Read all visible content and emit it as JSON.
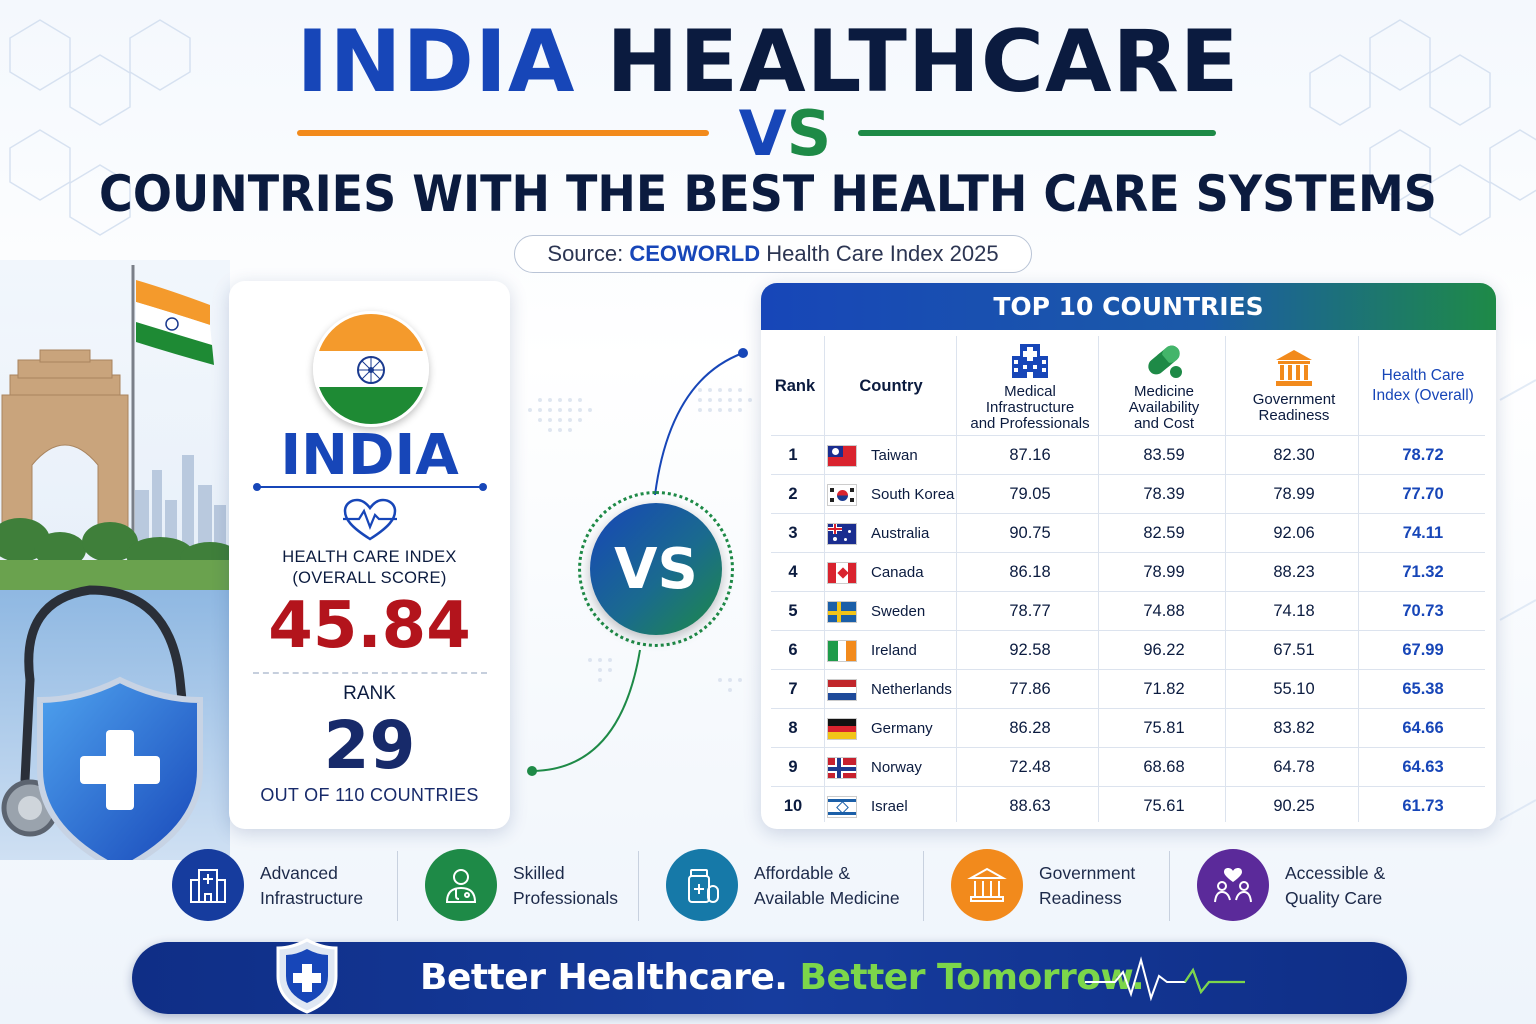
{
  "header": {
    "title_india": "INDIA",
    "title_healthcare": "HEALTHCARE",
    "vs_v": "V",
    "vs_s": "S",
    "subtitle": "COUNTRIES WITH THE BEST HEALTH CARE SYSTEMS",
    "source_prefix": "Source: ",
    "source_brand": "CEOWORLD",
    "source_suffix": " Health Care Index 2025"
  },
  "india_card": {
    "country": "INDIA",
    "index_label_1": "HEALTH CARE INDEX",
    "index_label_2": "(OVERALL SCORE)",
    "score": "45.84",
    "rank_label": "RANK",
    "rank": "29",
    "rank_total": "OUT OF 110 COUNTRIES"
  },
  "vs_badge": "VS",
  "table": {
    "title": "TOP 10 COUNTRIES",
    "headers": {
      "rank": "Rank",
      "country": "Country",
      "medical": [
        "Medical",
        "Infrastructure",
        "and Professionals"
      ],
      "medicine": [
        "Medicine",
        "Availability",
        "and Cost"
      ],
      "government": [
        "Government",
        "Readiness"
      ],
      "index": [
        "Health Care",
        "Index (Overall)"
      ]
    },
    "rows": [
      {
        "rank": "1",
        "country": "Taiwan",
        "flag": "taiwan",
        "medical": "87.16",
        "medicine": "83.59",
        "government": "82.30",
        "index": "78.72"
      },
      {
        "rank": "2",
        "country": "South Korea",
        "flag": "south-korea",
        "medical": "79.05",
        "medicine": "78.39",
        "government": "78.99",
        "index": "77.70"
      },
      {
        "rank": "3",
        "country": "Australia",
        "flag": "australia",
        "medical": "90.75",
        "medicine": "82.59",
        "government": "92.06",
        "index": "74.11"
      },
      {
        "rank": "4",
        "country": "Canada",
        "flag": "canada",
        "medical": "86.18",
        "medicine": "78.99",
        "government": "88.23",
        "index": "71.32"
      },
      {
        "rank": "5",
        "country": "Sweden",
        "flag": "sweden",
        "medical": "78.77",
        "medicine": "74.88",
        "government": "74.18",
        "index": "70.73"
      },
      {
        "rank": "6",
        "country": "Ireland",
        "flag": "ireland",
        "medical": "92.58",
        "medicine": "96.22",
        "government": "67.51",
        "index": "67.99"
      },
      {
        "rank": "7",
        "country": "Netherlands",
        "flag": "netherlands",
        "medical": "77.86",
        "medicine": "71.82",
        "government": "55.10",
        "index": "65.38"
      },
      {
        "rank": "8",
        "country": "Germany",
        "flag": "germany",
        "medical": "86.28",
        "medicine": "75.81",
        "government": "83.82",
        "index": "64.66"
      },
      {
        "rank": "9",
        "country": "Norway",
        "flag": "norway",
        "medical": "72.48",
        "medicine": "68.68",
        "government": "64.78",
        "index": "64.63"
      },
      {
        "rank": "10",
        "country": "Israel",
        "flag": "israel",
        "medical": "88.63",
        "medicine": "75.61",
        "government": "90.25",
        "index": "61.73"
      }
    ]
  },
  "features": [
    {
      "line1": "Advanced",
      "line2": "Infrastructure",
      "icon": "hospital-building-icon",
      "color": "#163c9e"
    },
    {
      "line1": "Skilled",
      "line2": "Professionals",
      "icon": "doctor-icon",
      "color": "#1e8a47"
    },
    {
      "line1": "Affordable &",
      "line2": "Available Medicine",
      "icon": "medicine-bottle-icon",
      "color": "#1679a8"
    },
    {
      "line1": "Government",
      "line2": "Readiness",
      "icon": "government-building-icon",
      "color": "#f28a1c"
    },
    {
      "line1": "Accessible &",
      "line2": "Quality Care",
      "icon": "caring-hands-icon",
      "color": "#5b2a9a"
    }
  ],
  "banner": {
    "white": "Better Healthcare.",
    "green": "Better Tomorrow."
  },
  "colors": {
    "primary_blue": "#1746b8",
    "navy": "#0b1b3f",
    "saffron": "#f28a1c",
    "green": "#1e8a47",
    "score_red": "#b3141c"
  }
}
